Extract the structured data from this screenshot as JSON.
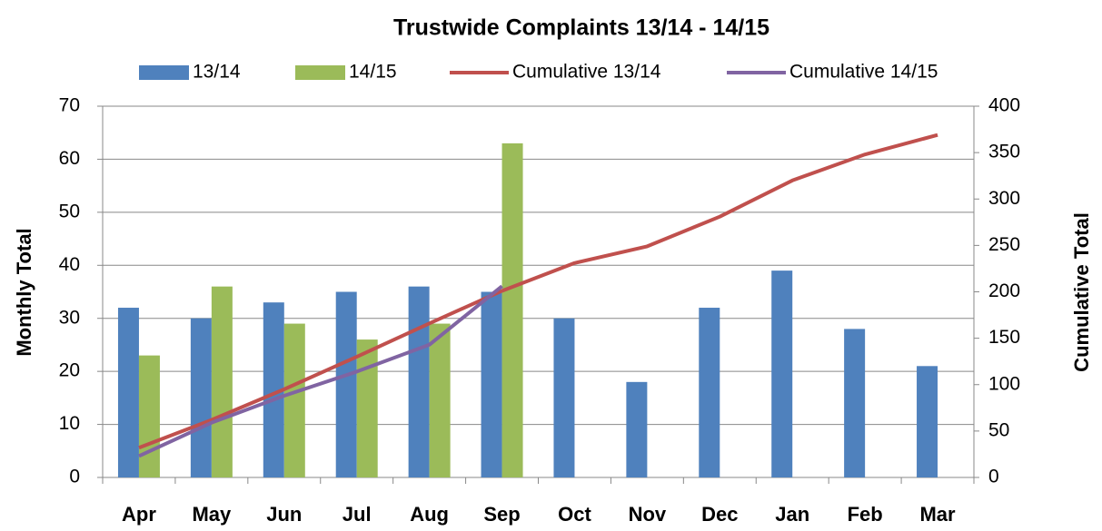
{
  "chart_data": {
    "type": "bar",
    "title": "Trustwide Complaints 13/14 - 14/15",
    "categories": [
      "Apr",
      "May",
      "Jun",
      "Jul",
      "Aug",
      "Sep",
      "Oct",
      "Nov",
      "Dec",
      "Jan",
      "Feb",
      "Mar"
    ],
    "series": [
      {
        "name": "13/14",
        "type": "bar",
        "color": "#4f81bd",
        "values": [
          32,
          30,
          33,
          35,
          36,
          35,
          30,
          18,
          32,
          39,
          28,
          21
        ]
      },
      {
        "name": "14/15",
        "type": "bar",
        "color": "#9bbb59",
        "values": [
          23,
          36,
          29,
          26,
          29,
          63,
          null,
          null,
          null,
          null,
          null,
          null
        ]
      },
      {
        "name": "Cumulative 13/14",
        "type": "line",
        "axis": "y2",
        "color": "#c0504d",
        "values": [
          32,
          62,
          95,
          130,
          166,
          201,
          231,
          249,
          281,
          320,
          348,
          369
        ]
      },
      {
        "name": "Cumulative 14/15",
        "type": "line",
        "axis": "y2",
        "color": "#8064a2",
        "values": [
          23,
          59,
          88,
          114,
          143,
          206,
          null,
          null,
          null,
          null,
          null,
          null
        ]
      }
    ],
    "y_label": "Monthly Total",
    "y2_label": "Cumulative Total",
    "ylim": [
      0,
      70
    ],
    "yticks": [
      0,
      10,
      20,
      30,
      40,
      50,
      60,
      70
    ],
    "y2lim": [
      0,
      400
    ],
    "y2ticks": [
      0,
      50,
      100,
      150,
      200,
      250,
      300,
      350,
      400
    ],
    "grid": true,
    "legend": "top"
  }
}
